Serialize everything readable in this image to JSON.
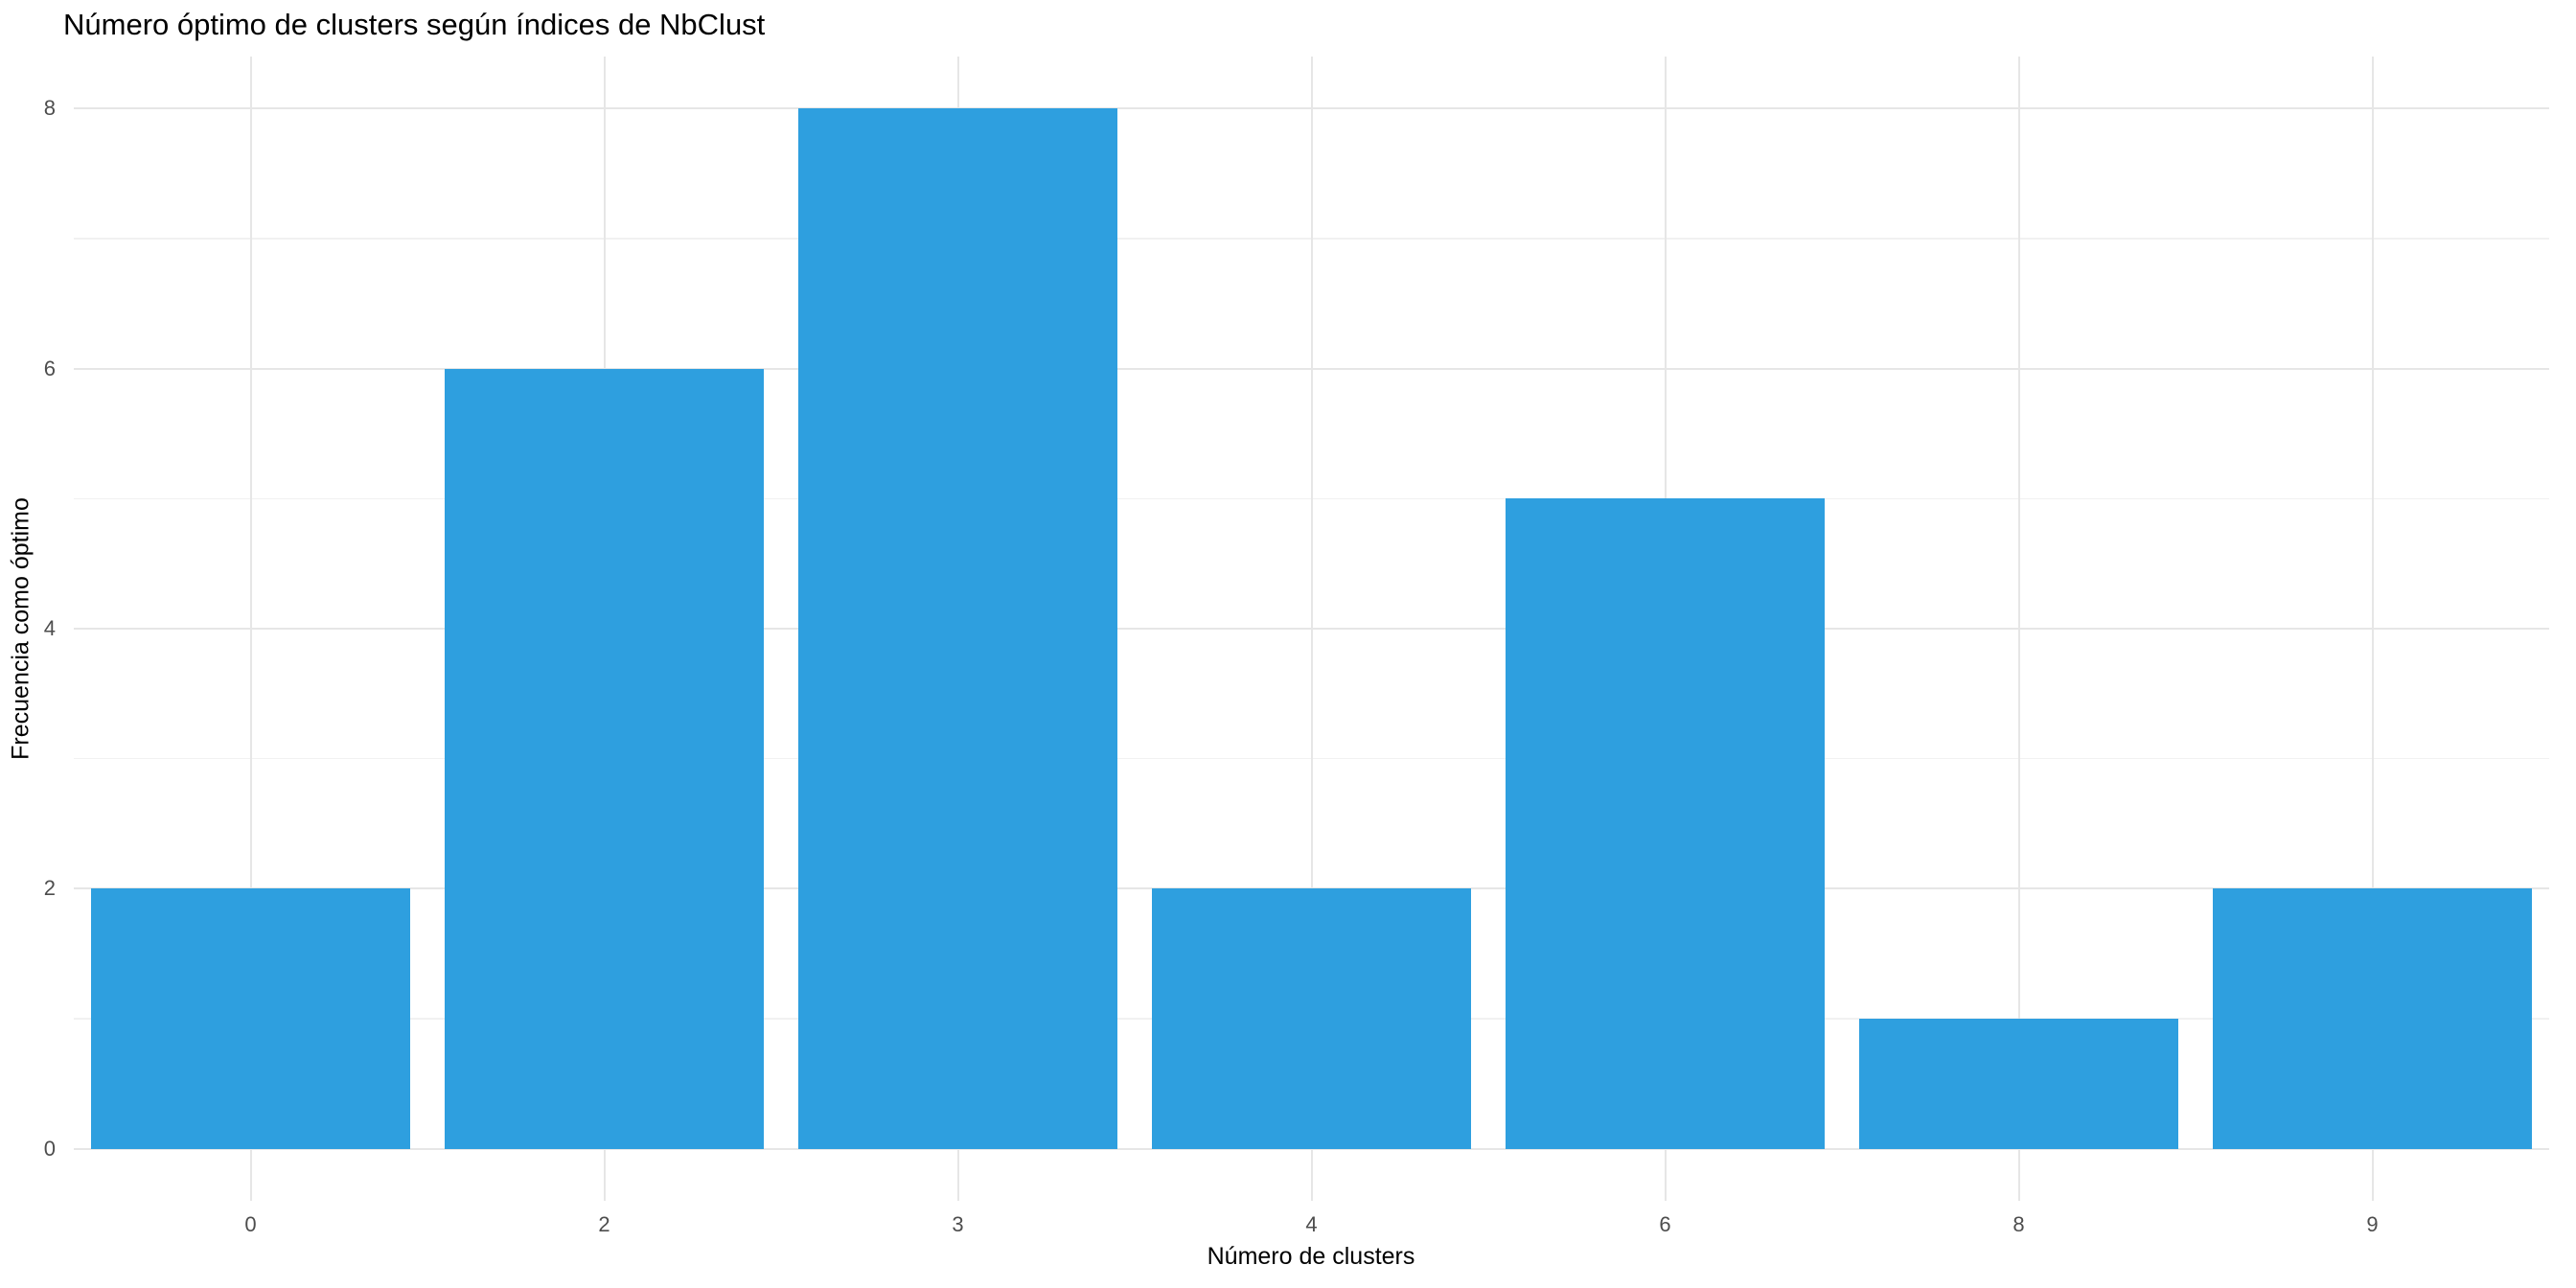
{
  "chart_data": {
    "type": "bar",
    "title": "Número óptimo de clusters según índices de NbClust",
    "xlabel": "Número de clusters",
    "ylabel": "Frecuencia como óptimo",
    "categories": [
      "0",
      "2",
      "3",
      "4",
      "6",
      "8",
      "9"
    ],
    "values": [
      2,
      6,
      8,
      2,
      5,
      1,
      2
    ],
    "y_tick_values": [
      0,
      2,
      4,
      6,
      8
    ],
    "y_tick_labels": [
      "0",
      "2",
      "4",
      "6",
      "8"
    ],
    "y_minor_values": [
      1,
      3,
      5,
      7
    ],
    "ylim": [
      -0.4,
      8.4
    ],
    "bar_width_fraction": 0.9,
    "legend": "none",
    "grid": "on",
    "colors": {
      "bar_fill": "#2E9FDF",
      "background": "#ffffff",
      "grid_major": "#e6e6e6",
      "grid_minor": "#f1f1f1",
      "tick_label": "#4d4d4d",
      "title_text": "#000000"
    }
  }
}
